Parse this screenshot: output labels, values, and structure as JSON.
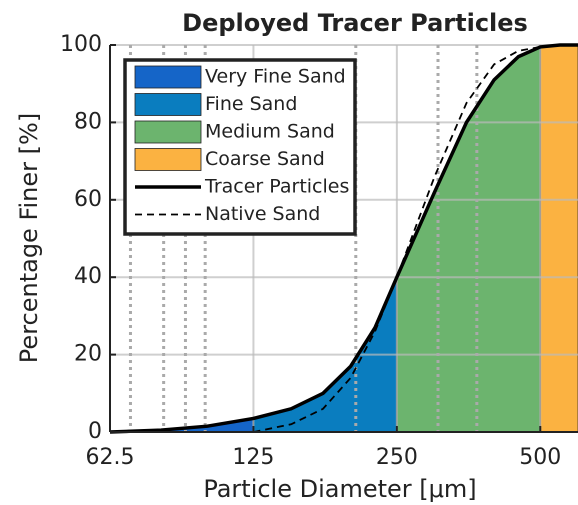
{
  "chart_data": {
    "type": "grain-size-curve",
    "title": "Deployed Tracer Particles",
    "x_label": "Particle Diameter [μm]",
    "y_label": "Percentage Finer [%]",
    "xscale": "log",
    "xlim": [
      62.5,
      600
    ],
    "ylim": [
      0,
      100
    ],
    "xticks": [
      62.5,
      125,
      250,
      500
    ],
    "yticks": [
      0,
      20,
      40,
      60,
      80,
      100
    ],
    "grid": true,
    "sieve_lines": [
      69,
      81,
      90,
      99,
      205,
      305,
      368
    ],
    "bands": [
      {
        "name": "Very Fine Sand",
        "color": "#1565c8",
        "range": [
          62.5,
          125
        ]
      },
      {
        "name": "Fine Sand",
        "color": "#0a7dbf",
        "range": [
          125,
          250
        ]
      },
      {
        "name": "Medium Sand",
        "color": "#6cb46e",
        "range": [
          250,
          500
        ]
      },
      {
        "name": "Coarse Sand",
        "color": "#fbb241",
        "range": [
          500,
          600
        ]
      }
    ],
    "series": [
      {
        "name": "Tracer Particles",
        "color": "#000000",
        "dash": "solid",
        "x": [
          62.5,
          80,
          100,
          125,
          150,
          175,
          200,
          225,
          250,
          300,
          350,
          400,
          450,
          500,
          550,
          600
        ],
        "values": [
          0,
          0.5,
          1.5,
          3.5,
          6,
          10,
          17,
          27,
          40,
          62,
          80,
          91,
          97,
          99.5,
          100,
          100
        ]
      },
      {
        "name": "Native Sand",
        "color": "#000000",
        "dash": "dashed",
        "x": [
          125,
          150,
          175,
          200,
          225,
          250,
          300,
          350,
          400,
          450,
          500
        ],
        "values": [
          0,
          2,
          6,
          14,
          26,
          40,
          66,
          85,
          95,
          98.5,
          99.5
        ]
      }
    ],
    "legend": "upper left"
  }
}
